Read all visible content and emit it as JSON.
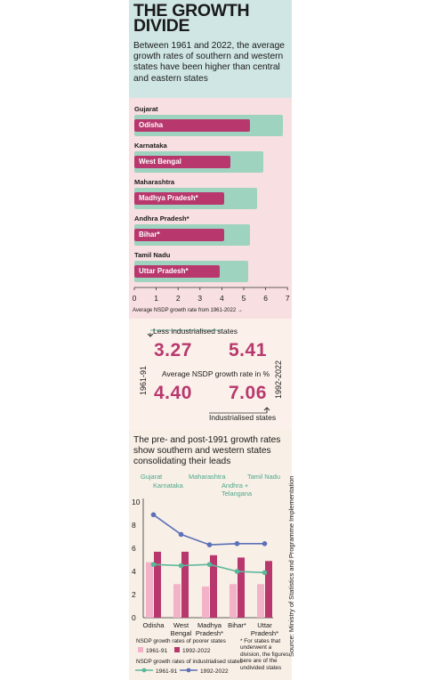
{
  "header": {
    "title": "THE GROWTH DIVIDE",
    "subtitle": "Between 1961 and 2022, the average growth rates of southern and western states have been higher than central and eastern states"
  },
  "chart_data": [
    {
      "type": "bar",
      "orientation": "horizontal",
      "title": "",
      "xlabel": "Average NSDP growth rate from 1961-2022 →",
      "xlim": [
        0,
        7
      ],
      "xticks": [
        "0",
        "1",
        "2",
        "3",
        "4",
        "5",
        "6",
        "7"
      ],
      "pairs": [
        {
          "industrialised": "Gujarat",
          "industrialised_value": 6.8,
          "less": "Odisha",
          "less_value": 5.3
        },
        {
          "industrialised": "Karnataka",
          "industrialised_value": 5.9,
          "less": "West Bengal",
          "less_value": 4.4
        },
        {
          "industrialised": "Maharashtra",
          "industrialised_value": 5.6,
          "less": "Madhya Pradesh*",
          "less_value": 4.1
        },
        {
          "industrialised": "Andhra Pradesh*",
          "industrialised_value": 5.3,
          "less": "Bihar*",
          "less_value": 4.1
        },
        {
          "industrialised": "Tamil Nadu",
          "industrialised_value": 5.2,
          "less": "Uttar Pradesh*",
          "less_value": 3.9
        }
      ]
    },
    {
      "type": "bar",
      "title": "The pre- and post-1991 growth rates show southern and western states consolidating their leads",
      "ylim": [
        0,
        10
      ],
      "yticks": [
        "0",
        "2",
        "4",
        "6",
        "8",
        "10"
      ],
      "categories": [
        "Odisha",
        "West Bengal",
        "Madhya Pradesh*",
        "Bihar*",
        "Uttar Pradesh*"
      ],
      "category_lines": [
        [
          "Odisha"
        ],
        [
          "West",
          "Bengal"
        ],
        [
          "Madhya",
          "Pradesh*"
        ],
        [
          "Bihar*"
        ],
        [
          "Uttar",
          "Pradesh*"
        ]
      ],
      "industrialised_labels": [
        "Gujarat",
        "Karnataka",
        "Maharashtra",
        "Andhra + Telangana",
        "Tamil Nadu"
      ],
      "series": [
        {
          "name": "1961-91",
          "kind": "bar",
          "values": [
            4.8,
            2.9,
            2.7,
            2.9,
            2.9
          ]
        },
        {
          "name": "1992-2022",
          "kind": "bar",
          "values": [
            5.7,
            5.7,
            5.4,
            5.2,
            4.9
          ]
        },
        {
          "name": "1961-91",
          "kind": "line",
          "values": [
            4.6,
            4.5,
            4.6,
            4.0,
            3.9
          ]
        },
        {
          "name": "1992-2022",
          "kind": "line",
          "values": [
            8.9,
            7.2,
            6.3,
            6.4,
            6.4
          ]
        }
      ],
      "legend": {
        "poorer_heading": "NSDP growth rates of poorer states",
        "industrialised_heading": "NSDP growth rates of industrialised states",
        "label_a": "1961-91",
        "label_b": "1992-2022"
      }
    }
  ],
  "summary": {
    "less_label": "Less industrialised states",
    "more_label": "Industrialised states",
    "metric_label": "Average NSDP growth rate in %",
    "period_left": "1961-91",
    "period_right": "1992-2022",
    "less_1961": "3.27",
    "less_1992": "5.41",
    "more_1961": "4.40",
    "more_1992": "7.06"
  },
  "footnote": "* For states that underwent a division, the figures here are of the undivided states",
  "source": "Source: Ministry of Statistics and Programme Implementation",
  "colors": {
    "teal_bar": "#9ed3c0",
    "magenta_bar": "#b8386e",
    "pink_bar": "#f2b2c8",
    "line_1961": "#5ab89a",
    "line_1992": "#5b70b8",
    "header_bg": "#cfe6e4",
    "chart_bg": "#f8dfe1"
  }
}
